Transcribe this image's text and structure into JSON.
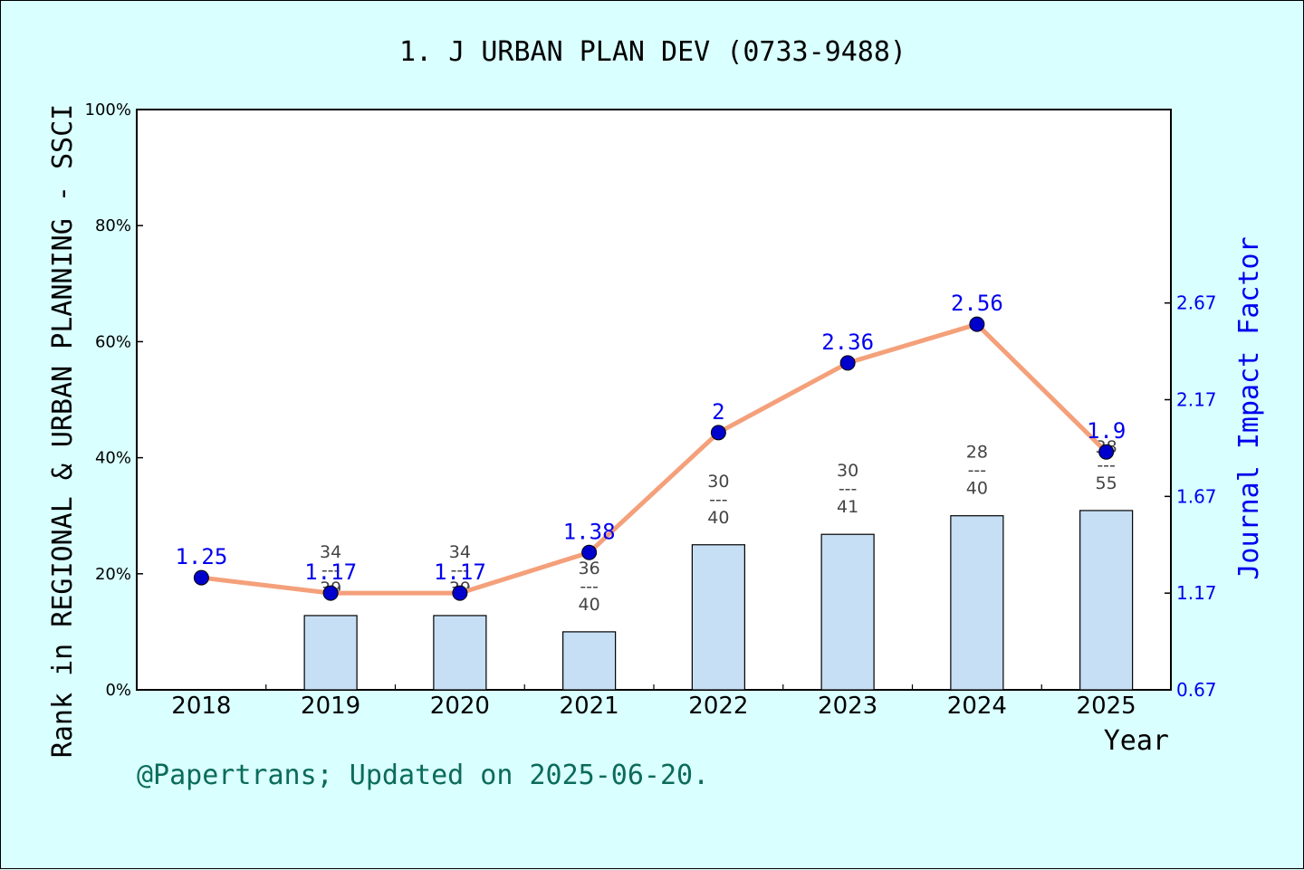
{
  "title": "1. J URBAN PLAN DEV (0733-9488)",
  "note": "@Papertrans; Updated on 2025-06-20.",
  "chart_data": {
    "type": "bar+line",
    "title": "1. J URBAN PLAN DEV (0733-9488)",
    "xlabel": "Year",
    "ylabel": "Rank in REGIONAL & URBAN PLANNING - SSCI",
    "y2label": "Journal Impact Factor",
    "categories": [
      "2018",
      "2019",
      "2020",
      "2021",
      "2022",
      "2023",
      "2024",
      "2025"
    ],
    "ylim": [
      0,
      100
    ],
    "yticks": [
      "0%",
      "20%",
      "40%",
      "60%",
      "80%",
      "100%"
    ],
    "y2lim": [
      0.67,
      3.67
    ],
    "y2ticks": [
      "0.67",
      "1.17",
      "1.67",
      "2.17",
      "2.67"
    ],
    "bars": {
      "values": [
        null,
        12.8,
        12.8,
        10.0,
        25.0,
        26.8,
        30.0,
        30.9
      ],
      "color": "#c6dff5",
      "rank_labels": [
        null,
        {
          "rank": "34",
          "total": "39"
        },
        {
          "rank": "34",
          "total": "39"
        },
        {
          "rank": "36",
          "total": "40"
        },
        {
          "rank": "30",
          "total": "40"
        },
        {
          "rank": "30",
          "total": "41"
        },
        {
          "rank": "28",
          "total": "40"
        },
        {
          "rank": "38",
          "total": "55"
        }
      ],
      "separator": "---"
    },
    "line": {
      "values": [
        1.25,
        1.17,
        1.17,
        1.38,
        2,
        2.36,
        2.56,
        1.9
      ],
      "labels": [
        "1.25",
        "1.17",
        "1.17",
        "1.38",
        "2",
        "2.36",
        "2.56",
        "1.9"
      ],
      "line_color": "#f4a07a",
      "marker_color": "#0000cc"
    },
    "grid": false
  }
}
